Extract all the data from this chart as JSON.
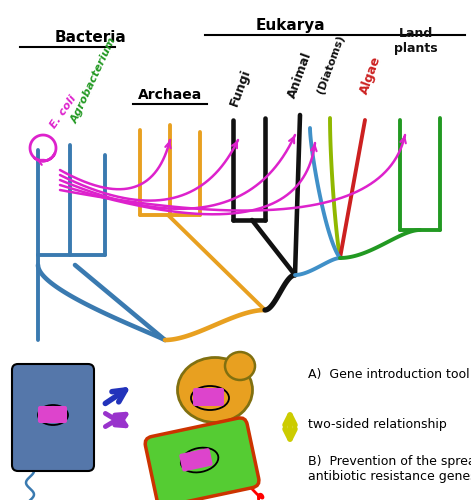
{
  "bg_color": "#ffffff",
  "bacteria_label": "Bacteria",
  "eukarya_label": "Eukarya",
  "archaea_label": "Archaea",
  "ecoli_label": "E. coli",
  "agrobacterium_label": "Agrobacterium",
  "label_A": "A)  Gene introduction tool",
  "label_double_arrow": "two-sided relationship",
  "label_B": "B)  Prevention of the spread of\nantibiotic resistance genes",
  "blue": "#3a7ab0",
  "gold": "#e8a020",
  "black": "#111111",
  "cyan": "#4090c8",
  "ylgreen": "#90b800",
  "red": "#cc2020",
  "green": "#229922",
  "magenta": "#dd22cc",
  "blue_dark": "#2233bb",
  "gold_cell": "#e8a020",
  "green_cell": "#55cc33",
  "blue_cell": "#5577aa",
  "pink_insert": "#dd44cc",
  "arrow_yellow": "#cccc00"
}
